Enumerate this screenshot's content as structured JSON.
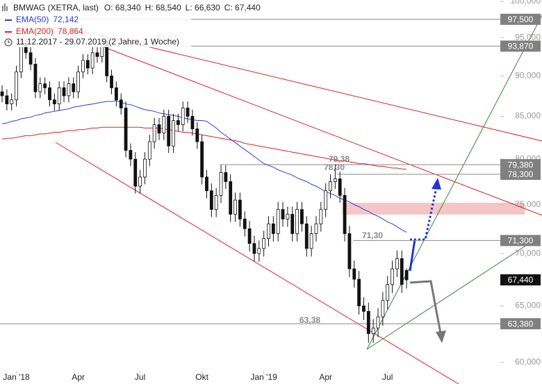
{
  "chart_data": {
    "type": "candlestick",
    "title": "BMWAG (XETRA, last)",
    "quote": [
      "O: 68,340",
      "H: 68,540",
      "L: 66,630",
      "C: 67,440"
    ],
    "period": "11.12.2017 - 29.07.2019 (2 Jahre, 1 Woche)",
    "open": [
      88.0,
      87.5,
      86.5,
      87.0,
      90.5,
      94.0,
      93.0,
      91.5,
      88.0,
      89.0,
      88.5,
      87.0,
      86.5,
      88.5,
      87.5,
      89.0,
      88.0,
      90.5,
      92.0,
      91.0,
      93.0,
      92.5,
      94.5,
      90.0,
      88.5,
      87.0,
      86.0,
      81.0,
      80.0,
      77.0,
      78.0,
      80.0,
      82.0,
      84.0,
      83.0,
      85.0,
      81.5,
      84.5,
      84.0,
      86.0,
      85.0,
      83.5,
      82.0,
      78.0,
      76.5,
      74.5,
      76.0,
      78.5,
      77.5,
      74.0,
      75.5,
      73.5,
      72.5,
      71.0,
      70.0,
      70.5,
      71.5,
      73.0,
      72.0,
      74.5,
      73.5,
      74.0,
      72.0,
      74.5,
      73.0,
      70.5,
      72.0,
      73.0,
      74.5,
      76.5,
      77.5,
      77.8,
      76.0,
      72.0,
      68.5,
      67.5,
      65.0,
      64.5,
      62.5,
      63.0,
      64.0,
      65.5,
      67.0,
      68.5,
      69.5,
      68.34
    ],
    "high": [
      88.8,
      88.3,
      87.8,
      91.3,
      95.0,
      94.8,
      93.8,
      92.3,
      89.8,
      89.8,
      89.3,
      87.8,
      89.3,
      89.3,
      89.8,
      89.8,
      91.3,
      92.8,
      92.8,
      93.8,
      93.8,
      95.3,
      95.0,
      90.8,
      89.3,
      87.8,
      86.8,
      81.8,
      80.8,
      78.8,
      80.8,
      82.8,
      84.8,
      84.8,
      85.8,
      85.8,
      85.3,
      85.3,
      86.8,
      86.8,
      85.8,
      84.3,
      82.8,
      78.8,
      77.3,
      76.8,
      79.3,
      79.3,
      78.3,
      76.3,
      76.3,
      74.3,
      73.3,
      71.8,
      71.3,
      72.3,
      73.8,
      73.8,
      75.3,
      75.3,
      74.8,
      74.8,
      75.3,
      75.3,
      73.8,
      72.8,
      73.8,
      75.3,
      77.3,
      78.3,
      79.4,
      78.6,
      76.8,
      72.8,
      69.3,
      68.3,
      65.8,
      65.3,
      63.8,
      64.8,
      66.3,
      67.8,
      69.3,
      70.3,
      70.3,
      68.54
    ],
    "low": [
      86.7,
      85.7,
      85.7,
      86.2,
      89.7,
      92.2,
      90.7,
      87.2,
      87.2,
      87.7,
      86.2,
      85.7,
      85.7,
      86.7,
      86.7,
      87.2,
      87.2,
      89.7,
      90.2,
      90.2,
      91.7,
      91.7,
      89.2,
      87.7,
      86.2,
      85.2,
      80.2,
      79.2,
      76.2,
      76.2,
      77.2,
      79.2,
      81.2,
      82.2,
      82.2,
      80.7,
      80.7,
      83.2,
      83.2,
      84.2,
      82.7,
      81.2,
      77.2,
      75.7,
      73.7,
      73.7,
      75.2,
      76.7,
      73.2,
      73.2,
      72.7,
      71.7,
      70.2,
      69.2,
      69.2,
      69.7,
      70.7,
      71.2,
      71.2,
      72.7,
      72.7,
      71.2,
      71.2,
      72.2,
      69.7,
      69.7,
      71.2,
      72.2,
      73.7,
      75.7,
      76.7,
      75.2,
      71.2,
      67.7,
      66.7,
      64.2,
      63.7,
      61.7,
      61.7,
      62.2,
      63.2,
      64.7,
      66.2,
      67.7,
      66.2,
      66.63
    ],
    "close": [
      87.5,
      86.5,
      87.0,
      90.5,
      94.0,
      93.0,
      91.5,
      88.0,
      89.0,
      88.5,
      87.0,
      86.5,
      88.5,
      87.5,
      89.0,
      88.0,
      90.5,
      92.0,
      91.0,
      93.0,
      92.5,
      94.5,
      90.0,
      88.5,
      87.0,
      86.0,
      81.0,
      80.0,
      77.0,
      78.0,
      80.0,
      82.0,
      84.0,
      83.0,
      85.0,
      81.5,
      84.5,
      84.0,
      86.0,
      85.0,
      83.5,
      82.0,
      78.0,
      76.5,
      74.5,
      76.0,
      78.5,
      77.5,
      74.0,
      75.5,
      73.5,
      72.5,
      71.0,
      70.0,
      70.5,
      71.5,
      73.0,
      72.0,
      74.5,
      73.5,
      74.0,
      72.0,
      74.5,
      73.0,
      70.5,
      72.0,
      73.0,
      74.5,
      76.5,
      77.5,
      77.8,
      76.0,
      72.0,
      68.5,
      67.5,
      65.0,
      64.5,
      62.5,
      63.0,
      64.0,
      65.5,
      67.0,
      68.5,
      69.5,
      67.0,
      67.44
    ],
    "series": [
      {
        "name": "EMA(50)",
        "value_label": "72,142",
        "color": "#2a3de0",
        "values": [
          84.1,
          84.2,
          84.4,
          84.5,
          84.7,
          84.8,
          84.9,
          85.1,
          85.2,
          85.4,
          85.5,
          85.6,
          85.7,
          85.8,
          85.9,
          86.1,
          86.2,
          86.3,
          86.4,
          86.5,
          86.6,
          86.7,
          86.8,
          86.8,
          86.9,
          86.7,
          86.5,
          86.4,
          86.2,
          86.0,
          85.8,
          85.7,
          85.6,
          85.4,
          85.3,
          85.2,
          85.1,
          85.0,
          84.8,
          84.7,
          84.6,
          84.5,
          84.5,
          84.4,
          84.0,
          83.6,
          83.1,
          82.7,
          82.3,
          81.9,
          81.5,
          81.1,
          80.7,
          80.3,
          79.9,
          79.5,
          79.3,
          79.1,
          78.8,
          78.6,
          78.4,
          78.2,
          77.9,
          77.7,
          77.5,
          77.2,
          77.0,
          76.7,
          76.4,
          76.2,
          76.0,
          75.7,
          75.5,
          75.3,
          75.0,
          74.8,
          74.5,
          74.3,
          74.0,
          73.8,
          73.5,
          73.2,
          73.0,
          72.7,
          72.4,
          72.142
        ]
      },
      {
        "name": "EMA(200)",
        "value_label": "78,864",
        "color": "#e02020",
        "values": [
          82.3,
          82.4,
          82.4,
          82.5,
          82.6,
          82.7,
          82.7,
          82.8,
          82.9,
          82.9,
          83.0,
          83.1,
          83.1,
          83.2,
          83.3,
          83.3,
          83.4,
          83.4,
          83.5,
          83.6,
          83.6,
          83.7,
          83.7,
          83.7,
          83.7,
          83.7,
          83.7,
          83.7,
          83.7,
          83.7,
          83.6,
          83.6,
          83.6,
          83.6,
          83.5,
          83.4,
          83.3,
          83.2,
          83.1,
          83.1,
          83.0,
          82.9,
          82.8,
          82.7,
          82.6,
          82.5,
          82.4,
          82.3,
          82.2,
          82.1,
          82.0,
          81.8,
          81.7,
          81.6,
          81.5,
          81.4,
          81.3,
          81.2,
          81.1,
          81.0,
          80.9,
          80.8,
          80.7,
          80.6,
          80.5,
          80.4,
          80.3,
          80.2,
          80.1,
          80.0,
          79.9,
          79.8,
          79.8,
          79.7,
          79.6,
          79.5,
          79.5,
          79.4,
          79.3,
          79.2,
          79.2,
          79.1,
          79.0,
          79.0,
          78.9,
          78.864
        ]
      }
    ],
    "xlim": [
      -0.44,
      104.7
    ],
    "xticks": [
      {
        "value": 3,
        "label": "Jan '18"
      },
      {
        "value": 16,
        "label": "Apr"
      },
      {
        "value": 29,
        "label": "Jul"
      },
      {
        "value": 42,
        "label": "Okt"
      },
      {
        "value": 55,
        "label": "Jan '19"
      },
      {
        "value": 68,
        "label": "Apr"
      },
      {
        "value": 81,
        "label": "Jul"
      }
    ],
    "ylim": [
      59.24,
      100.2
    ],
    "log_scale": true,
    "yticks": [
      {
        "value": 60,
        "label": "60,000"
      },
      {
        "value": 65,
        "label": "65,000"
      },
      {
        "value": 70,
        "label": "70,000"
      },
      {
        "value": 75,
        "label": "75,000"
      },
      {
        "value": 80,
        "label": "80,000"
      },
      {
        "value": 85,
        "label": "85,000"
      },
      {
        "value": 90,
        "label": "90,000"
      },
      {
        "value": 95,
        "label": "95,000"
      },
      {
        "value": 100,
        "label": "100,000"
      }
    ],
    "levels": [
      {
        "value": 97.5,
        "label": "97,500"
      },
      {
        "value": 93.87,
        "label": "93,870",
        "annotation": "93,87"
      },
      {
        "value": 79.38,
        "label": "79,380",
        "annotation": "79,38"
      },
      {
        "value": 78.3,
        "label": "78,300",
        "annotation": "78,30"
      },
      {
        "value": 71.3,
        "label": "71,300",
        "annotation": "71,30"
      },
      {
        "value": 63.38,
        "label": "63,380",
        "annotation": "63,38"
      }
    ],
    "last_price": {
      "value": 67.44,
      "label": "67,440"
    }
  }
}
